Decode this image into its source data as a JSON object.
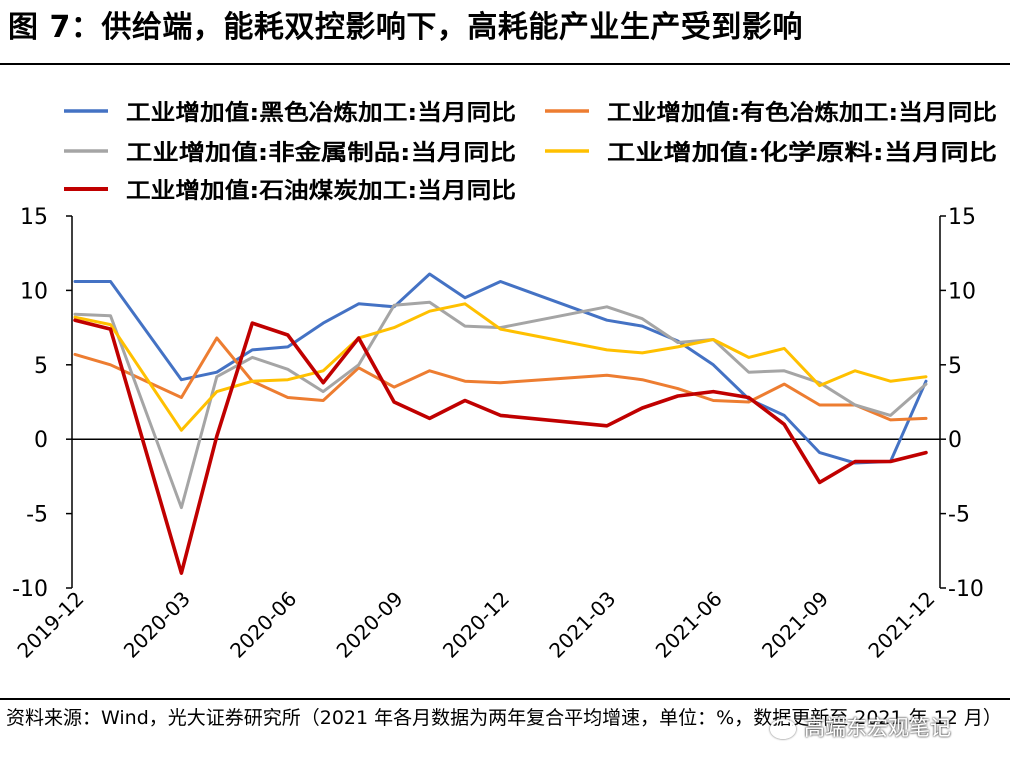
{
  "title": "图 7：供给端，能耗双控影响下，高耗能产业生产受到影响",
  "source_note": "资料来源：Wind，光大证券研究所（2021 年各月数据为两年复合平均增速，单位：%，数据更新至 2021 年 12 月）",
  "watermark": "高端东宏观笔记",
  "chart_data": {
    "type": "line",
    "title": "",
    "xlabel": "",
    "ylabel": "",
    "ylim": [
      -10,
      15
    ],
    "yticks": [
      -10,
      -5,
      0,
      5,
      10,
      15
    ],
    "x": [
      "2019-12",
      "2020-01",
      "2020-02",
      "2020-03",
      "2020-04",
      "2020-05",
      "2020-06",
      "2020-07",
      "2020-08",
      "2020-09",
      "2020-10",
      "2020-11",
      "2020-12",
      "2021-01",
      "2021-02",
      "2021-03",
      "2021-04",
      "2021-05",
      "2021-06",
      "2021-07",
      "2021-08",
      "2021-09",
      "2021-10",
      "2021-11",
      "2021-12"
    ],
    "xtick_labels": [
      "2019-12",
      "2020-03",
      "2020-06",
      "2020-09",
      "2020-12",
      "2021-03",
      "2021-06",
      "2021-09",
      "2021-12"
    ],
    "legend_position": "top",
    "series": [
      {
        "name": "工业增加值:黑色冶炼加工:当月同比",
        "color": "#4472C4",
        "values": [
          10.6,
          10.6,
          null,
          4.0,
          4.5,
          6.0,
          6.2,
          7.8,
          9.1,
          8.9,
          11.1,
          9.5,
          10.6,
          null,
          null,
          8.0,
          7.6,
          6.6,
          5.0,
          2.7,
          1.6,
          -0.9,
          -1.6,
          -1.5,
          3.9
        ]
      },
      {
        "name": "工业增加值:有色冶炼加工:当月同比",
        "color": "#ED7D31",
        "values": [
          5.7,
          5.0,
          null,
          2.8,
          6.8,
          3.9,
          2.8,
          2.6,
          4.8,
          3.5,
          4.6,
          3.9,
          3.8,
          null,
          null,
          4.3,
          4.0,
          3.4,
          2.6,
          2.5,
          3.7,
          2.3,
          2.3,
          1.3,
          1.4
        ]
      },
      {
        "name": "工业增加值:非金属制品:当月同比",
        "color": "#A5A5A5",
        "values": [
          8.4,
          8.3,
          null,
          -4.6,
          4.2,
          5.5,
          4.7,
          3.2,
          5.0,
          9.0,
          9.2,
          7.6,
          7.5,
          null,
          null,
          8.9,
          8.1,
          6.5,
          6.7,
          4.5,
          4.6,
          3.8,
          2.3,
          1.6,
          3.7
        ]
      },
      {
        "name": "工业增加值:化学原料:当月同比",
        "color": "#FFC000",
        "values": [
          8.2,
          7.7,
          null,
          0.6,
          3.2,
          3.9,
          4.0,
          4.6,
          6.8,
          7.5,
          8.6,
          9.1,
          7.4,
          null,
          null,
          6.0,
          5.8,
          6.2,
          6.7,
          5.5,
          6.1,
          3.6,
          4.6,
          3.9,
          4.2
        ]
      },
      {
        "name": "工业增加值:石油煤炭加工:当月同比",
        "color": "#C00000",
        "values": [
          8.0,
          7.4,
          null,
          -9.0,
          0.2,
          7.8,
          7.0,
          3.8,
          6.8,
          2.5,
          1.4,
          2.6,
          1.6,
          null,
          null,
          0.9,
          2.1,
          2.9,
          3.2,
          2.8,
          1.0,
          -2.9,
          -1.5,
          -1.5,
          -0.9
        ]
      }
    ]
  }
}
